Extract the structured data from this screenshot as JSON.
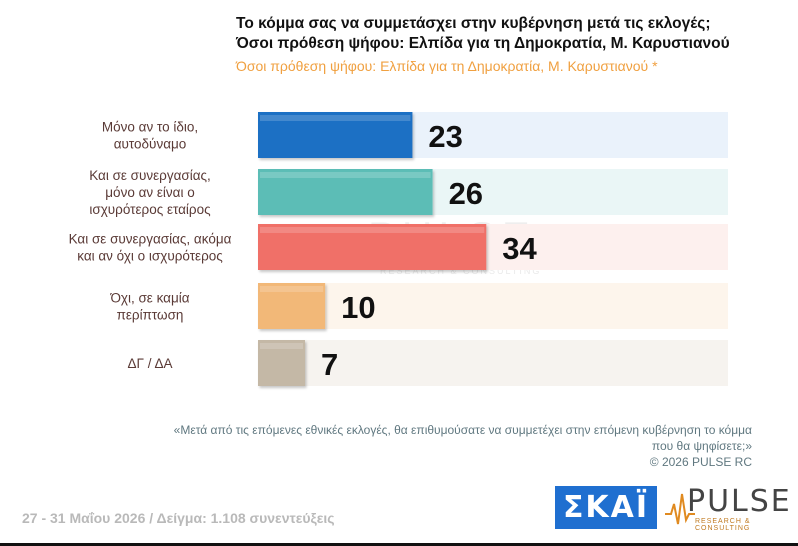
{
  "header": {
    "title_line1": "Το κόμμα σας να συμμετάσχει στην κυβέρνηση μετά τις εκλογές;",
    "title_line2": "Όσοι πρόθεση ψήφου: Ελπίδα για τη Δημοκρατία, Μ. Καρυστιανού",
    "subtitle": "Όσοι πρόθεση ψήφου: Ελπίδα για τη Δημοκρατία, Μ. Καρυστιανού *"
  },
  "watermark": {
    "text": "PULSE",
    "sub": "RESEARCH & CONSULTING"
  },
  "chart_data": {
    "type": "bar",
    "orientation": "horizontal",
    "categories": [
      [
        "Μόνο αν το ίδιο,",
        "αυτοδύναμο"
      ],
      [
        "Και σε συνεργασίας,",
        "μόνο αν είναι ο",
        "ισχυρότερος εταίρος"
      ],
      [
        "Και σε συνεργασίας, ακόμα",
        "και αν όχι ο ισχυρότερος"
      ],
      [
        "Όχι, σε καμία",
        "περίπτωση"
      ],
      [
        "ΔΓ / ΔΑ"
      ]
    ],
    "values": [
      23,
      26,
      34,
      10,
      7
    ],
    "value_labels": [
      "23",
      "26",
      "34",
      "10",
      "7"
    ],
    "xlim": [
      0,
      70
    ],
    "colors": [
      "#1c6fc4",
      "#5cbdb6",
      "#f07068",
      "#f2b878",
      "#c4b8a6"
    ],
    "track_colors": [
      "#eaf2fb",
      "#eaf6f6",
      "#fdf0ee",
      "#fdf5ec",
      "#f6f3ef"
    ],
    "grid": false,
    "legend": "none"
  },
  "footer": {
    "question": "«Μετά από τις επόμενες εθνικές εκλογές, θα επιθυμούσατε να συμμετέχει στην επόμενη κυβέρνηση το κόμμα που θα ψηφίσετε;»",
    "copyright": "©  2026  PULSE RC",
    "dates_sample": "27 - 31  Μαΐου 2026  /  Δείγμα:  1.108 συνεντεύξεις"
  },
  "logos": {
    "skai": "ΣΚΑΪ",
    "pulse": "PULSE",
    "pulse_sub": "RESEARCH & CONSULTING"
  }
}
